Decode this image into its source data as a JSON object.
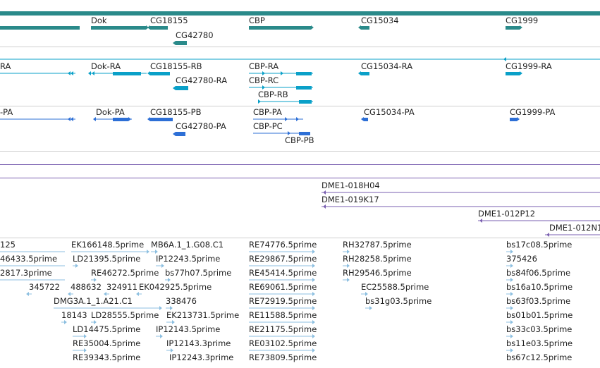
{
  "colors": {
    "gene": "#2a8a8a",
    "transcript": "#0aa0c8",
    "protein": "#2d6fd6",
    "clone": "#7a5fb0",
    "est": "#8cbfe0"
  },
  "tracks": {
    "genes": [
      "Dok",
      "CG18155",
      "CG42780",
      "CBP",
      "CG15034",
      "CG1999"
    ],
    "transcripts": [
      "RA",
      "Dok-RA",
      "CG18155-RB",
      "CG42780-RA",
      "CBP-RA",
      "CBP-RC",
      "CBP-RB",
      "CG15034-RA",
      "CG1999-RA"
    ],
    "proteins": [
      "-PA",
      "Dok-PA",
      "CG18155-PB",
      "CG42780-PA",
      "CBP-PA",
      "CBP-PC",
      "CBP-PB",
      "CG15034-PA",
      "CG1999-PA"
    ],
    "clones": [
      "DME1-018H04",
      "DME1-019K17",
      "DME1-012P12",
      "DME1-012N1"
    ],
    "ests": [
      "125",
      "EK166148.5prime",
      "MB6A.1_1.G08.C1",
      "RE74776.5prime",
      "RH32787.5prime",
      "bs17c08.5prime",
      "46433.5prime",
      "LD21395.5prime",
      "IP12243.5prime",
      "RE29867.5prime",
      "RH28258.5prime",
      "375426",
      "2817.3prime",
      "RE46272.5prime",
      "bs77h07.5prime",
      "RE45414.5prime",
      "RH29546.5prime",
      "bs84f06.5prime",
      "345722",
      "488632",
      "324911",
      "EK042925.5prime",
      "RE69061.5prime",
      "EC25588.5prime",
      "bs16a10.5prime",
      "DMG3A.1_1.A21.C1",
      "338476",
      "RE72919.5prime",
      "bs31g03.5prime",
      "bs63f03.5prime",
      "18143",
      "LD28555.5prime",
      "EK213731.5prime",
      "RE11588.5prime",
      "bs01b01.5prime",
      "LD14475.5prime",
      "IP12143.5prime",
      "RE21175.5prime",
      "bs33c03.5prime",
      "RE35004.5prime",
      "IP12143.3prime",
      "RE03102.5prime",
      "bs11e03.5prime",
      "RE39343.5prime",
      "IP12243.3prime",
      "RE73809.5prime",
      "bs67c12.5prime"
    ]
  }
}
